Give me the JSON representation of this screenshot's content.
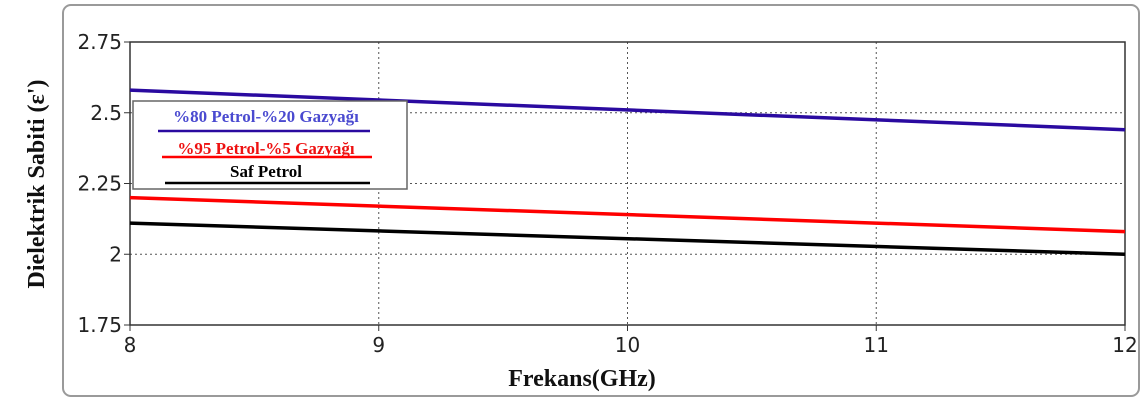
{
  "chart_data": {
    "type": "line",
    "title": "",
    "xlabel": "Frekans(GHz)",
    "ylabel": "Dielektrik Sabiti (ε')",
    "xlim": [
      8,
      12
    ],
    "ylim": [
      1.75,
      2.75
    ],
    "x_ticks": [
      "8",
      "9",
      "10",
      "11",
      "12"
    ],
    "y_ticks": [
      "2.75",
      "2.5",
      "2.25",
      "2",
      "1.75"
    ],
    "x_tick_values": [
      8,
      9,
      10,
      11,
      12
    ],
    "y_tick_values": [
      2.75,
      2.5,
      2.25,
      2,
      1.75
    ],
    "grid": true,
    "legend_position": "top-left",
    "series": [
      {
        "name": "%80 Petrol-%20 Gazyağı",
        "color": "#2a0aa0",
        "text_color": "#4a4ad0",
        "x": [
          8,
          12
        ],
        "y": [
          2.58,
          2.44
        ]
      },
      {
        "name": "%95 Petrol-%5 Gazyağı",
        "color": "#ff0000",
        "text_color": "#ee1111",
        "x": [
          8,
          12
        ],
        "y": [
          2.2,
          2.08
        ]
      },
      {
        "name": "Saf Petrol",
        "color": "#000000",
        "text_color": "#000000",
        "x": [
          8,
          12
        ],
        "y": [
          2.11,
          2.0
        ]
      }
    ]
  }
}
